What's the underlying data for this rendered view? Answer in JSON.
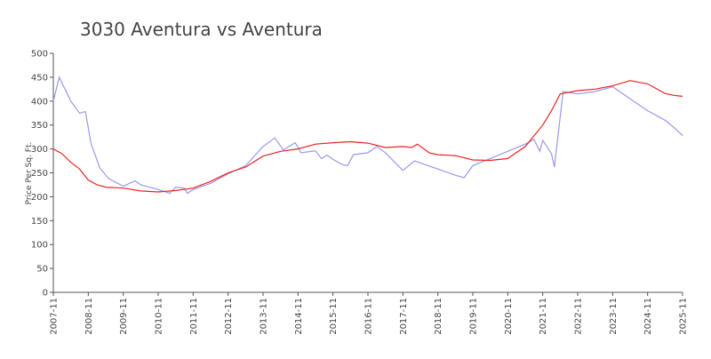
{
  "chart_data": {
    "type": "line",
    "title": "3030 Aventura vs Aventura",
    "ylabel": "Price Per Sq. Ft.",
    "xlim": [
      "2007-11",
      "2025-11"
    ],
    "xticks": [
      {
        "value": "2007-11",
        "label": "2007-11"
      },
      {
        "value": "2008-11",
        "label": "2008-11"
      },
      {
        "value": "2009-11",
        "label": "2009-11"
      },
      {
        "value": "2010-11",
        "label": "2010-11"
      },
      {
        "value": "2011-11",
        "label": "2011-11"
      },
      {
        "value": "2012-11",
        "label": "2012-11"
      },
      {
        "value": "2013-11",
        "label": "2013-11"
      },
      {
        "value": "2014-11",
        "label": "2014-11"
      },
      {
        "value": "2015-11",
        "label": "2015-11"
      },
      {
        "value": "2016-11",
        "label": "2016-11"
      },
      {
        "value": "2017-11",
        "label": "2017-11"
      },
      {
        "value": "2018-11",
        "label": "2018-11"
      },
      {
        "value": "2019-11",
        "label": "2019-11"
      },
      {
        "value": "2020-11",
        "label": "2020-11"
      },
      {
        "value": "2021-11",
        "label": "2021-11"
      },
      {
        "value": "2022-11",
        "label": "2022-11"
      },
      {
        "value": "2023-11",
        "label": "2023-11"
      },
      {
        "value": "2024-11",
        "label": "2024-11"
      },
      {
        "value": "2025-11",
        "label": "2025-11"
      }
    ],
    "ylim": [
      0,
      500
    ],
    "yticks": [
      0,
      50,
      100,
      150,
      200,
      250,
      300,
      350,
      400,
      450,
      500
    ],
    "grid": false,
    "series": [
      {
        "color": "#9999ee",
        "x": [
          "2007-11",
          "2008-01",
          "2008-05",
          "2008-08",
          "2008-10",
          "2008-12",
          "2009-03",
          "2009-06",
          "2009-11",
          "2010-03",
          "2010-05",
          "2010-11",
          "2011-03",
          "2011-05",
          "2011-08",
          "2011-09",
          "2011-11",
          "2012-05",
          "2012-11",
          "2013-05",
          "2013-11",
          "2014-03",
          "2014-06",
          "2014-10",
          "2014-12",
          "2015-05",
          "2015-07",
          "2015-09",
          "2015-11",
          "2016-02",
          "2016-04",
          "2016-06",
          "2016-11",
          "2017-02",
          "2017-05",
          "2017-11",
          "2018-03",
          "2018-11",
          "2019-05",
          "2019-08",
          "2019-11",
          "2020-05",
          "2020-11",
          "2021-05",
          "2021-08",
          "2021-10",
          "2021-11",
          "2022-02",
          "2022-03",
          "2022-06",
          "2022-11",
          "2023-05",
          "2023-11",
          "2024-05",
          "2024-11",
          "2025-05",
          "2025-08",
          "2025-11"
        ],
        "values": [
          400,
          450,
          400,
          375,
          378,
          310,
          260,
          238,
          222,
          233,
          225,
          215,
          207,
          220,
          218,
          207,
          215,
          228,
          248,
          265,
          305,
          323,
          298,
          313,
          292,
          296,
          280,
          287,
          278,
          268,
          265,
          288,
          292,
          305,
          292,
          255,
          275,
          258,
          245,
          240,
          265,
          280,
          295,
          310,
          320,
          295,
          318,
          290,
          262,
          420,
          415,
          420,
          430,
          405,
          380,
          360,
          345,
          328
        ]
      },
      {
        "color": "#ee2222",
        "x": [
          "2007-11",
          "2008-02",
          "2008-05",
          "2008-08",
          "2008-11",
          "2009-02",
          "2009-05",
          "2009-11",
          "2010-05",
          "2010-11",
          "2011-05",
          "2011-11",
          "2012-05",
          "2012-11",
          "2013-05",
          "2013-11",
          "2014-05",
          "2014-11",
          "2015-05",
          "2015-11",
          "2016-05",
          "2016-11",
          "2017-05",
          "2017-11",
          "2018-02",
          "2018-04",
          "2018-08",
          "2018-11",
          "2019-05",
          "2019-11",
          "2020-05",
          "2020-11",
          "2021-05",
          "2021-11",
          "2022-02",
          "2022-05",
          "2022-11",
          "2023-05",
          "2023-11",
          "2024-05",
          "2024-11",
          "2025-05",
          "2025-08",
          "2025-11"
        ],
        "values": [
          300,
          290,
          272,
          258,
          235,
          225,
          220,
          218,
          212,
          210,
          213,
          218,
          232,
          250,
          262,
          285,
          295,
          300,
          310,
          313,
          315,
          312,
          303,
          305,
          303,
          310,
          292,
          288,
          286,
          277,
          276,
          280,
          305,
          350,
          380,
          415,
          422,
          425,
          432,
          443,
          436,
          416,
          412,
          410
        ]
      }
    ]
  }
}
